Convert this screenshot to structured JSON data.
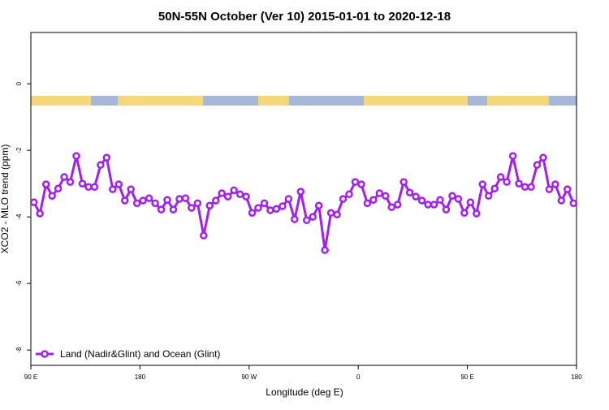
{
  "chart_data": {
    "type": "line",
    "title": "50N-55N October (Ver 10)   2015-01-01 to 2020-12-18",
    "x_label": "Longitude (deg E)",
    "y_label": "XCO2 - MLO trend (ppm)",
    "xlim": [
      90,
      540
    ],
    "xticks": [
      {
        "value": 90,
        "label": "90 E"
      },
      180,
      {
        "value": 270,
        "label": "90 W"
      },
      {
        "value": 360,
        "label": "0"
      },
      {
        "value": 450,
        "label": "90 E"
      },
      {
        "value": 540,
        "label": "180"
      }
    ],
    "ylim": [
      -8.46,
      1.54
    ],
    "yticks": [
      0,
      -2,
      -4,
      -6,
      -8
    ],
    "legend": "bottom-left",
    "x": [
      92.5,
      97.5,
      102.5,
      107.5,
      112.5,
      117.5,
      122.5,
      127.5,
      132.5,
      137.5,
      142.5,
      147.5,
      152.5,
      157.5,
      162.5,
      167.5,
      172.5,
      177.5,
      182.5,
      187.5,
      192.5,
      197.5,
      202.5,
      207.5,
      212.5,
      217.5,
      222.5,
      227.5,
      232.5,
      237.5,
      242.5,
      247.5,
      252.5,
      257.5,
      262.5,
      267.5,
      272.5,
      277.5,
      282.5,
      287.5,
      292.5,
      297.5,
      302.5,
      307.5,
      312.5,
      317.5,
      322.5,
      327.5,
      332.5,
      337.5,
      342.5,
      347.5,
      352.5,
      357.5,
      362.5,
      367.5,
      372.5,
      377.5,
      382.5,
      387.5,
      392.5,
      397.5,
      402.5,
      407.5,
      412.5,
      417.5,
      422.5,
      427.5,
      432.5,
      437.5,
      442.5,
      447.5,
      452.5,
      457.5,
      462.5,
      467.5,
      472.5,
      477.5,
      482.5,
      487.5,
      492.5,
      497.5,
      502.5,
      507.5,
      512.5,
      517.5,
      522.5,
      527.5,
      532.5,
      537.5
    ],
    "series": [
      {
        "name": "Land (Nadir&Glint) and Ocean (Glint)",
        "color": "#a020f0",
        "values": [
          -3.56,
          -3.9,
          -3.02,
          -3.37,
          -3.15,
          -2.8,
          -2.95,
          -2.17,
          -3.0,
          -3.1,
          -3.1,
          -2.44,
          -2.22,
          -3.17,
          -3.02,
          -3.51,
          -3.17,
          -3.59,
          -3.51,
          -3.44,
          -3.59,
          -3.78,
          -3.49,
          -3.78,
          -3.46,
          -3.44,
          -3.73,
          -3.59,
          -4.56,
          -3.66,
          -3.51,
          -3.29,
          -3.39,
          -3.2,
          -3.32,
          -3.39,
          -3.88,
          -3.73,
          -3.59,
          -3.8,
          -3.76,
          -3.68,
          -3.46,
          -4.07,
          -3.24,
          -4.1,
          -4.0,
          -3.66,
          -5.0,
          -3.88,
          -3.93,
          -3.46,
          -3.32,
          -2.95,
          -3.02,
          -3.59,
          -3.49,
          -3.29,
          -3.37,
          -3.71,
          -3.63,
          -2.95,
          -3.27,
          -3.39,
          -3.51,
          -3.63,
          -3.63,
          -3.49,
          -3.78,
          -3.37,
          -3.46,
          -3.88,
          -3.56,
          -3.9,
          -3.02,
          -3.37,
          -3.15,
          -2.8,
          -2.95,
          -2.17,
          -3.0,
          -3.1,
          -3.1,
          -2.44,
          -2.22,
          -3.17,
          -3.02,
          -3.51,
          -3.17,
          -3.59
        ]
      }
    ]
  }
}
